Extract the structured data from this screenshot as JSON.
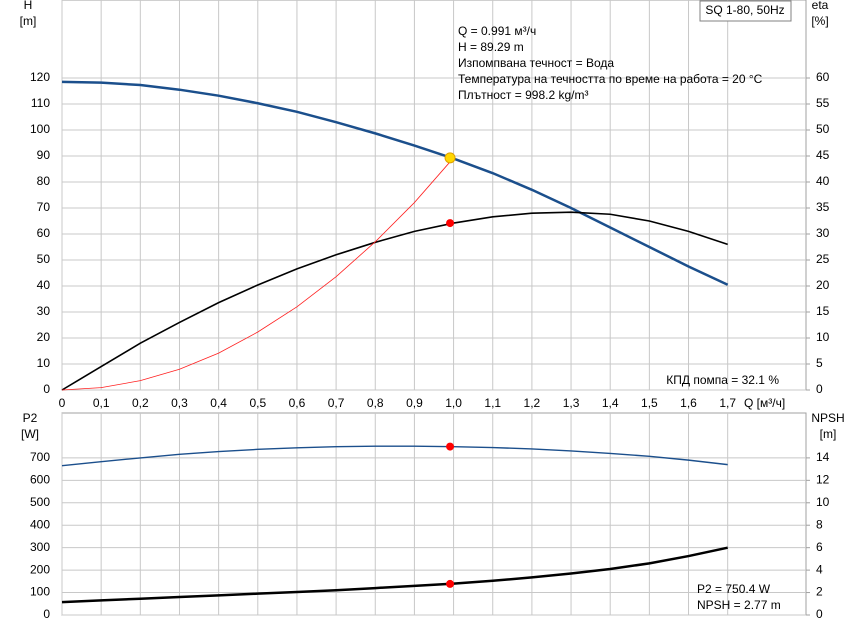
{
  "chart_data": [
    {
      "type": "line",
      "box_label": "SQ 1-80, 50Hz",
      "y_label": [
        "H",
        "[m]"
      ],
      "y2_label": [
        "eta",
        "[%]"
      ],
      "x_label": "Q [м³/ч]",
      "annotations": [
        "Q = 0.991 м³/ч",
        "H = 89.29 m",
        "Изпомпвана течност = Вода",
        "Температура на течността по време на работа = 20 °C",
        "Плътност = 998.2 kg/m³"
      ],
      "corner_note": "КПД помпа = 32.1 %",
      "x": [
        0,
        0.1,
        0.2,
        0.3,
        0.4,
        0.5,
        0.6,
        0.7,
        0.8,
        0.9,
        1.0,
        1.1,
        1.2,
        1.3,
        1.4,
        1.5,
        1.6,
        1.7
      ],
      "xlim": [
        0,
        1.9
      ],
      "xticks": [
        0,
        {
          "value": 0.1,
          "label": "0,1"
        },
        {
          "value": 0.2,
          "label": "0,2"
        },
        {
          "value": 0.3,
          "label": "0,3"
        },
        {
          "value": 0.4,
          "label": "0,4"
        },
        {
          "value": 0.5,
          "label": "0,5"
        },
        {
          "value": 0.6,
          "label": "0,6"
        },
        {
          "value": 0.7,
          "label": "0,7"
        },
        {
          "value": 0.8,
          "label": "0,8"
        },
        {
          "value": 0.9,
          "label": "0,9"
        },
        {
          "value": 1.0,
          "label": "1,0"
        },
        {
          "value": 1.1,
          "label": "1,1"
        },
        {
          "value": 1.2,
          "label": "1,2"
        },
        {
          "value": 1.3,
          "label": "1,3"
        },
        {
          "value": 1.4,
          "label": "1,4"
        },
        {
          "value": 1.5,
          "label": "1,5"
        },
        {
          "value": 1.6,
          "label": "1,6"
        },
        {
          "value": 1.7,
          "label": "1,7"
        }
      ],
      "ylim": [
        0,
        150
      ],
      "yticks": [
        0,
        10,
        20,
        30,
        40,
        50,
        60,
        70,
        80,
        90,
        100,
        110,
        120
      ],
      "y2lim": [
        0,
        75
      ],
      "y2ticks": [
        0,
        5,
        10,
        15,
        20,
        25,
        30,
        35,
        40,
        45,
        50,
        55,
        60
      ],
      "grid": true,
      "series": [
        {
          "color": "#1b4f8c",
          "width": 2.5,
          "values": [
            118.5,
            118.2,
            117.3,
            115.5,
            113.2,
            110.3,
            107,
            103,
            98.7,
            94,
            89,
            83.4,
            77,
            70,
            62.5,
            55,
            47.5,
            40.5
          ]
        },
        {
          "color": "#000000",
          "width": 1.6,
          "axis": "y2",
          "values": [
            0,
            4.5,
            9,
            13,
            16.8,
            20.2,
            23.3,
            26,
            28.4,
            30.5,
            32.1,
            33.3,
            34,
            34.2,
            33.8,
            32.5,
            30.5,
            28
          ]
        },
        {
          "color": "#ff2020",
          "width": 0.8,
          "values": [
            0,
            0.9,
            3.6,
            8,
            14.2,
            22.3,
            32,
            43.6,
            57,
            72.1,
            89.3,
            null,
            null,
            null,
            null,
            null,
            null,
            null
          ]
        }
      ],
      "points": [
        {
          "x": 0.991,
          "y": 89.29,
          "color": "#ffd700"
        },
        {
          "x": 0.991,
          "y": 32.1,
          "axis": "y2",
          "color": "#ff0000"
        }
      ]
    },
    {
      "type": "line",
      "y_label": [
        "P2",
        "[W]"
      ],
      "y2_label": [
        "NPSH",
        "[m]"
      ],
      "annotations": [
        "P2 = 750.4 W",
        "NPSH = 2.77 m"
      ],
      "ylim": [
        0,
        900
      ],
      "yticks": [
        0,
        100,
        200,
        300,
        400,
        500,
        600,
        700
      ],
      "y2lim": [
        0,
        18
      ],
      "y2ticks": [
        0,
        2,
        4,
        6,
        8,
        10,
        12,
        14
      ],
      "grid": true,
      "series": [
        {
          "color": "#1b4f8c",
          "width": 1.4,
          "values": [
            665,
            683,
            700,
            716,
            728,
            738,
            745,
            750,
            752,
            752,
            750,
            746,
            740,
            731,
            720,
            707,
            690,
            670
          ]
        },
        {
          "color": "#000000",
          "width": 2.5,
          "axis": "y2",
          "values": [
            1.15,
            1.3,
            1.45,
            1.6,
            1.75,
            1.9,
            2.05,
            2.2,
            2.4,
            2.6,
            2.8,
            3.05,
            3.35,
            3.7,
            4.1,
            4.6,
            5.25,
            6
          ]
        }
      ],
      "points": [
        {
          "x": 0.991,
          "y": 750.4,
          "color": "#ff0000"
        },
        {
          "x": 0.991,
          "y": 2.77,
          "axis": "y2",
          "color": "#ff0000"
        }
      ]
    }
  ]
}
